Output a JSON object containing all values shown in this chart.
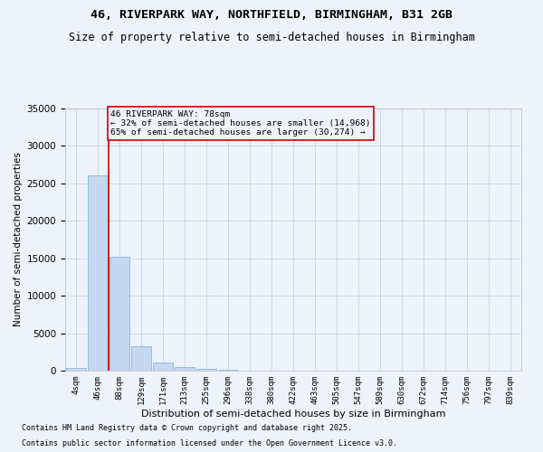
{
  "title": "46, RIVERPARK WAY, NORTHFIELD, BIRMINGHAM, B31 2GB",
  "subtitle": "Size of property relative to semi-detached houses in Birmingham",
  "xlabel": "Distribution of semi-detached houses by size in Birmingham",
  "ylabel": "Number of semi-detached properties",
  "footnote1": "Contains HM Land Registry data © Crown copyright and database right 2025.",
  "footnote2": "Contains public sector information licensed under the Open Government Licence v3.0.",
  "bar_labels": [
    "4sqm",
    "46sqm",
    "88sqm",
    "129sqm",
    "171sqm",
    "213sqm",
    "255sqm",
    "296sqm",
    "338sqm",
    "380sqm",
    "422sqm",
    "463sqm",
    "505sqm",
    "547sqm",
    "589sqm",
    "630sqm",
    "672sqm",
    "714sqm",
    "756sqm",
    "797sqm",
    "839sqm"
  ],
  "bar_values": [
    400,
    26100,
    15200,
    3300,
    1050,
    450,
    280,
    100,
    0,
    0,
    0,
    0,
    0,
    0,
    0,
    0,
    0,
    0,
    0,
    0,
    0
  ],
  "bar_color": "#c5d8f0",
  "bar_edge_color": "#7aafd4",
  "grid_color": "#c8d4e8",
  "background_color": "#eef3fb",
  "vline_x": 1.5,
  "vline_color": "#cc0000",
  "annotation_text": "46 RIVERPARK WAY: 78sqm\n← 32% of semi-detached houses are smaller (14,968)\n65% of semi-detached houses are larger (30,274) →",
  "annotation_box_color": "#cc0000",
  "ylim": [
    0,
    35000
  ],
  "yticks": [
    0,
    5000,
    10000,
    15000,
    20000,
    25000,
    30000,
    35000
  ]
}
